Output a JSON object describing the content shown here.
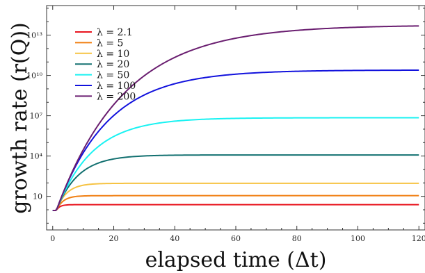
{
  "chart_data": {
    "type": "line",
    "xlabel": "elapsed time (Δt)",
    "ylabel": "growth rate (r(Q))",
    "xlim": [
      -2,
      122
    ],
    "ylim_log10": [
      -1.5,
      15.2
    ],
    "y_scale": "log",
    "x_ticks": [
      0,
      20,
      40,
      60,
      80,
      100,
      120
    ],
    "x_tick_labels": [
      "0",
      "20",
      "40",
      "60",
      "80",
      "100",
      "120"
    ],
    "y_ticks_log10": [
      1,
      4,
      7,
      10,
      13
    ],
    "y_tick_labels": [
      "10",
      "10⁴",
      "10⁷",
      "10¹⁰",
      "10¹³"
    ],
    "legend_position": "top-left",
    "grid": false,
    "x": [
      0,
      1,
      2,
      3,
      4,
      5,
      6,
      8,
      10,
      12,
      14,
      16,
      18,
      20,
      22,
      24,
      26,
      28,
      30,
      32,
      34,
      36,
      38,
      40,
      42,
      44,
      46,
      48,
      50,
      52,
      54,
      56,
      58,
      60,
      62,
      64,
      66,
      68,
      70,
      72,
      74,
      76,
      78,
      80,
      84,
      88,
      92,
      96,
      100,
      104,
      108,
      112,
      116,
      120
    ],
    "series": [
      {
        "name": "λ = 2.1",
        "color": "#e8141e",
        "plateau_log10": 0.38,
        "start_log10": -0.05,
        "k": 0.9
      },
      {
        "name": "λ = 5",
        "color": "#f07f12",
        "plateau_log10": 1.05,
        "start_log10": -0.05,
        "k": 0.45
      },
      {
        "name": "λ = 10",
        "color": "#f6c343",
        "plateau_log10": 1.97,
        "start_log10": -0.05,
        "k": 0.3
      },
      {
        "name": "λ = 20",
        "color": "#127070",
        "plateau_log10": 4.08,
        "start_log10": -0.05,
        "k": 0.14
      },
      {
        "name": "λ = 50",
        "color": "#19f2f2",
        "plateau_log10": 6.85,
        "start_log10": -0.05,
        "k": 0.085
      },
      {
        "name": "λ = 100",
        "color": "#1212dd",
        "plateau_log10": 10.4,
        "start_log10": -0.05,
        "k": 0.06
      },
      {
        "name": "λ = 200",
        "color": "#6a1e70",
        "plateau_log10": 13.75,
        "start_log10": -0.05,
        "k": 0.045
      }
    ]
  }
}
